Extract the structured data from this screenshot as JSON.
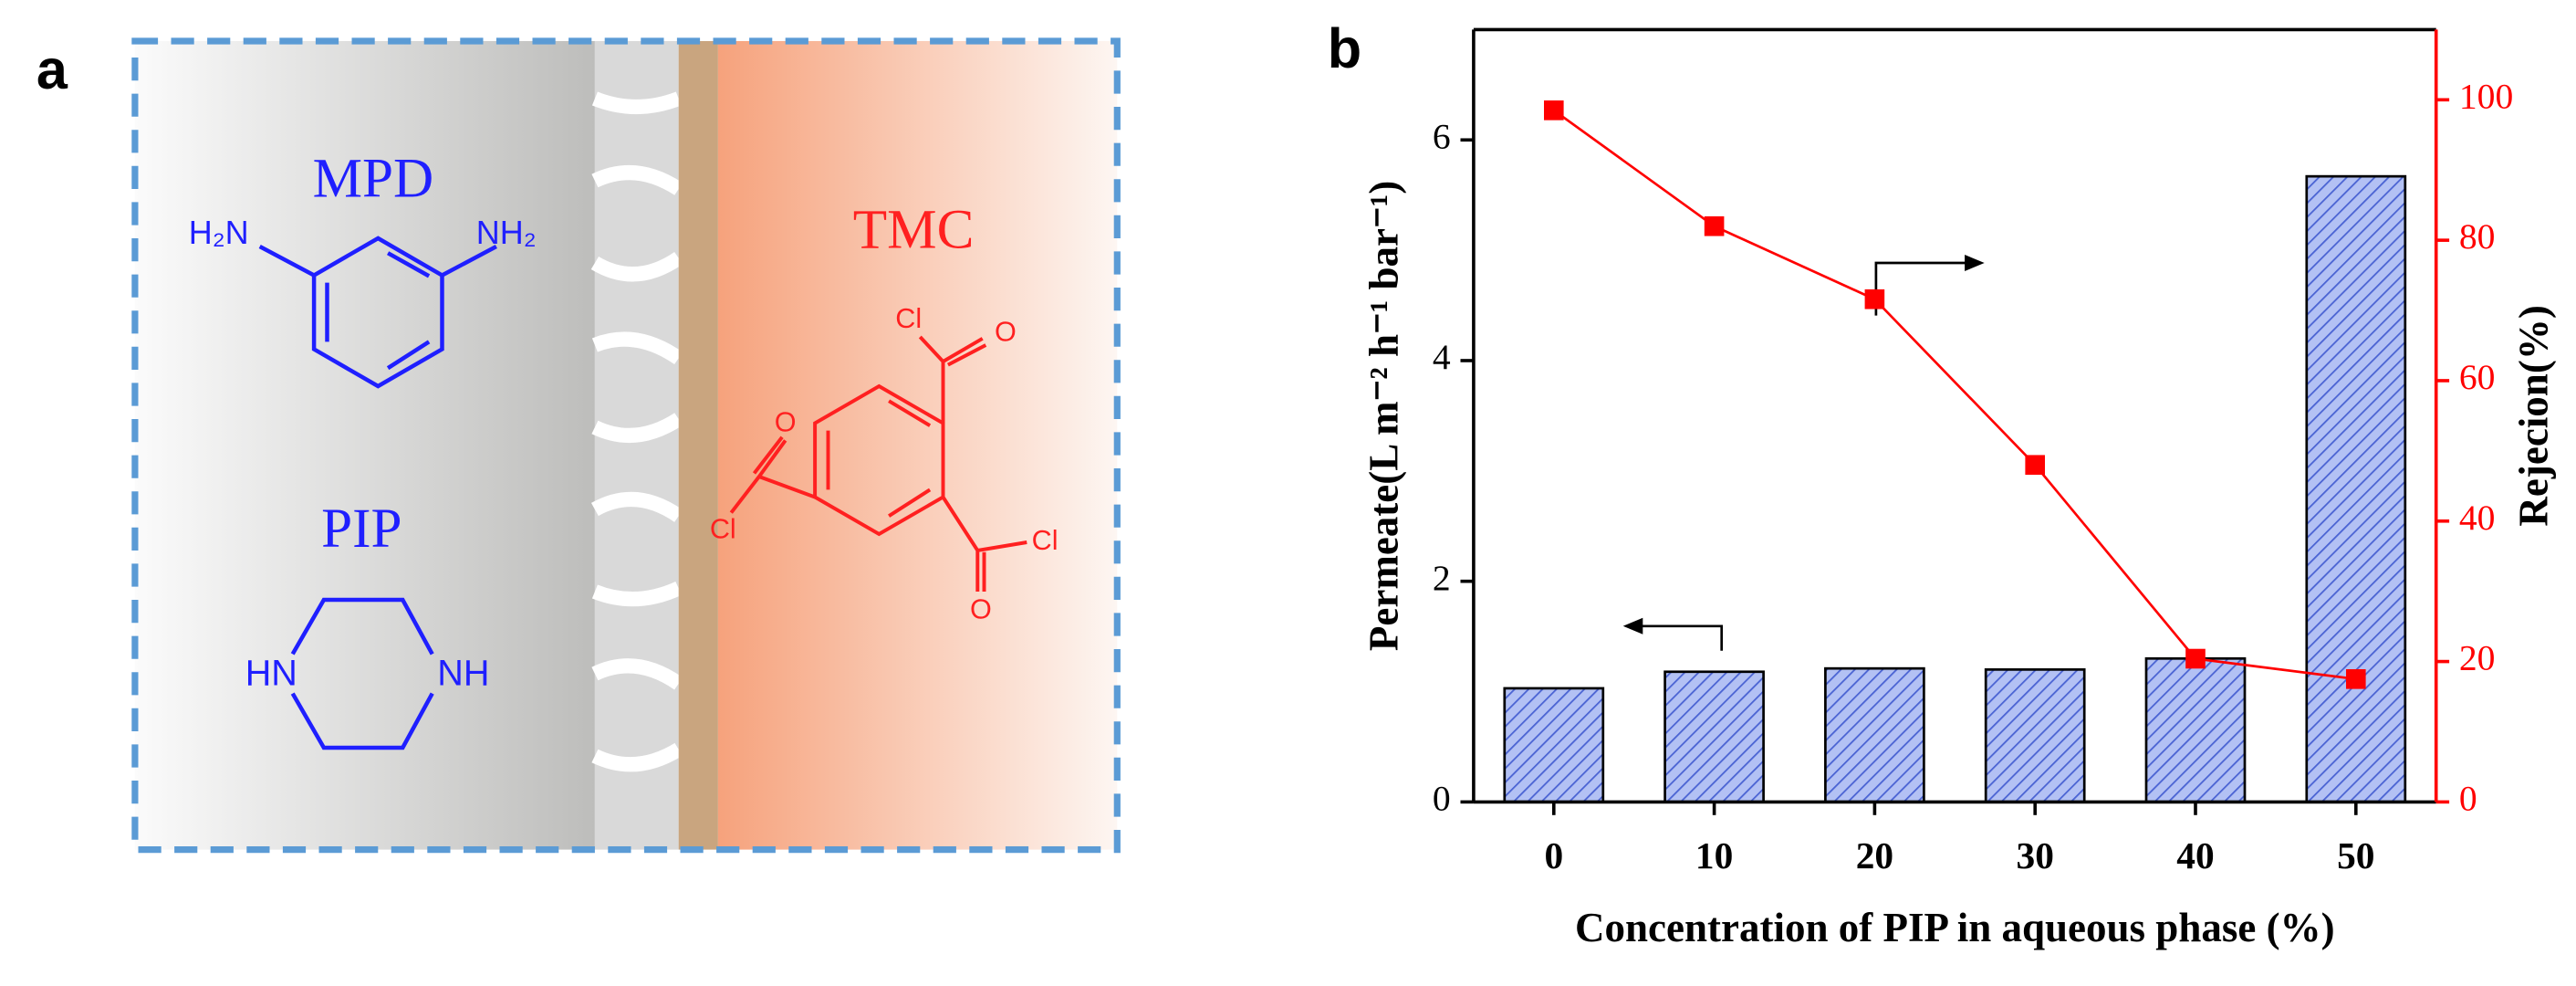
{
  "panel_a": {
    "label": "a",
    "mpd": {
      "name": "MPD",
      "groups": [
        "H₂N",
        "NH₂"
      ]
    },
    "pip": {
      "name": "PIP",
      "groups": [
        "HN",
        "NH"
      ]
    },
    "tmc": {
      "name": "TMC",
      "atoms": [
        "Cl",
        "O",
        "O",
        "Cl",
        "O",
        "Cl"
      ]
    }
  },
  "chart_data": {
    "type": "bar",
    "label": "b",
    "x_label": "Concentration of PIP in aqueous phase (%)",
    "y_label": "Permeate(L m⁻² h⁻¹ bar⁻¹)",
    "y2_label": "Rejecion(%)",
    "categories": [
      "0",
      "10",
      "20",
      "30",
      "40",
      "50"
    ],
    "series": [
      {
        "type": "bar",
        "axis": "y",
        "color": "#a9b9f2",
        "values": [
          1.03,
          1.18,
          1.21,
          1.2,
          1.3,
          5.67
        ]
      },
      {
        "type": "line",
        "axis": "y2",
        "color": "#ff0000",
        "values": [
          98.5,
          82,
          71.6,
          48,
          20.4,
          17.5
        ]
      }
    ],
    "ylim": [
      0,
      7
    ],
    "yticks": [
      0,
      2,
      4,
      6
    ],
    "y2lim": [
      0,
      110
    ],
    "y2ticks": [
      0,
      20,
      40,
      60,
      80,
      100
    ]
  }
}
